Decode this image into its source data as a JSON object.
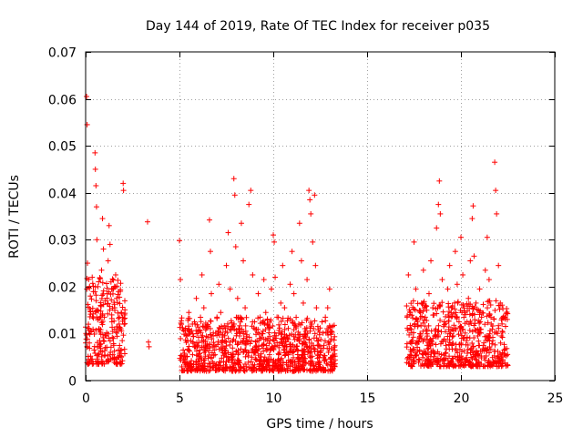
{
  "chart_data": {
    "type": "scatter",
    "title": "Day 144 of 2019, Rate Of TEC Index for receiver p035",
    "xlabel": "GPS time / hours",
    "ylabel": "ROTI / TECUs",
    "xlim": [
      0,
      25
    ],
    "ylim": [
      0,
      0.07
    ],
    "xticks": [
      0,
      5,
      10,
      15,
      20,
      25
    ],
    "xtick_labels": [
      "0",
      "5",
      "10",
      "15",
      "20",
      "25"
    ],
    "yticks": [
      0,
      0.01,
      0.02,
      0.03,
      0.04,
      0.05,
      0.06,
      0.07
    ],
    "ytick_labels": [
      "0",
      "0.01",
      "0.02",
      "0.03",
      "0.04",
      "0.05",
      "0.06",
      "0.07"
    ],
    "grid": true,
    "marker": "+",
    "color": "#ff0000",
    "series": [
      {
        "name": "p035",
        "points": [
          [
            0.05,
            0.0605
          ],
          [
            0.08,
            0.0545
          ],
          [
            0.1,
            0.025
          ],
          [
            0.15,
            0.012
          ],
          [
            0.2,
            0.008
          ],
          [
            0.25,
            0.018
          ],
          [
            0.3,
            0.0105
          ],
          [
            0.35,
            0.022
          ],
          [
            0.4,
            0.0142
          ],
          [
            0.45,
            0.0065
          ],
          [
            0.5,
            0.0485
          ],
          [
            0.52,
            0.045
          ],
          [
            0.55,
            0.0415
          ],
          [
            0.58,
            0.037
          ],
          [
            0.6,
            0.03
          ],
          [
            0.65,
            0.02
          ],
          [
            0.7,
            0.011
          ],
          [
            0.75,
            0.0085
          ],
          [
            0.8,
            0.016
          ],
          [
            0.85,
            0.0235
          ],
          [
            0.9,
            0.0345
          ],
          [
            0.95,
            0.028
          ],
          [
            1.0,
            0.0135
          ],
          [
            1.05,
            0.007
          ],
          [
            1.1,
            0.0095
          ],
          [
            1.15,
            0.0185
          ],
          [
            1.2,
            0.0255
          ],
          [
            1.25,
            0.033
          ],
          [
            1.3,
            0.029
          ],
          [
            1.35,
            0.021
          ],
          [
            1.4,
            0.0125
          ],
          [
            1.45,
            0.0055
          ],
          [
            1.5,
            0.0075
          ],
          [
            1.55,
            0.0155
          ],
          [
            1.6,
            0.0225
          ],
          [
            1.65,
            0.0175
          ],
          [
            1.7,
            0.0105
          ],
          [
            1.75,
            0.0065
          ],
          [
            1.8,
            0.0135
          ],
          [
            1.85,
            0.019
          ],
          [
            1.9,
            0.0145
          ],
          [
            1.95,
            0.0085
          ],
          [
            2.0,
            0.042
          ],
          [
            2.02,
            0.0405
          ],
          [
            2.05,
            0.012
          ],
          [
            0.12,
            0.0035
          ],
          [
            0.3,
            0.0045
          ],
          [
            0.7,
            0.0035
          ],
          [
            1.2,
            0.004
          ],
          [
            1.9,
            0.005
          ],
          [
            3.3,
            0.0338
          ],
          [
            3.35,
            0.0082
          ],
          [
            3.38,
            0.0072
          ],
          [
            5.0,
            0.0298
          ],
          [
            5.05,
            0.0215
          ],
          [
            5.1,
            0.012
          ],
          [
            5.2,
            0.0065
          ],
          [
            5.3,
            0.0045
          ],
          [
            5.4,
            0.0095
          ],
          [
            5.5,
            0.0145
          ],
          [
            5.6,
            0.0085
          ],
          [
            5.7,
            0.0055
          ],
          [
            5.8,
            0.0125
          ],
          [
            5.9,
            0.0175
          ],
          [
            6.0,
            0.0105
          ],
          [
            6.1,
            0.0065
          ],
          [
            6.2,
            0.0225
          ],
          [
            6.3,
            0.0155
          ],
          [
            6.4,
            0.0075
          ],
          [
            6.5,
            0.0115
          ],
          [
            6.6,
            0.0342
          ],
          [
            6.65,
            0.0275
          ],
          [
            6.7,
            0.0185
          ],
          [
            6.8,
            0.0095
          ],
          [
            6.9,
            0.0055
          ],
          [
            7.0,
            0.0135
          ],
          [
            7.1,
            0.0205
          ],
          [
            7.2,
            0.0145
          ],
          [
            7.3,
            0.0085
          ],
          [
            7.4,
            0.0065
          ],
          [
            7.5,
            0.0245
          ],
          [
            7.6,
            0.0315
          ],
          [
            7.7,
            0.0195
          ],
          [
            7.8,
            0.0115
          ],
          [
            7.9,
            0.043
          ],
          [
            7.95,
            0.0395
          ],
          [
            8.0,
            0.0285
          ],
          [
            8.1,
            0.0175
          ],
          [
            8.2,
            0.0095
          ],
          [
            8.3,
            0.0335
          ],
          [
            8.4,
            0.0255
          ],
          [
            8.5,
            0.0155
          ],
          [
            8.6,
            0.0085
          ],
          [
            8.7,
            0.0375
          ],
          [
            8.8,
            0.0405
          ],
          [
            8.9,
            0.0225
          ],
          [
            9.0,
            0.0125
          ],
          [
            9.1,
            0.0065
          ],
          [
            9.2,
            0.0185
          ],
          [
            9.3,
            0.0135
          ],
          [
            9.4,
            0.0075
          ],
          [
            9.5,
            0.0215
          ],
          [
            9.6,
            0.0145
          ],
          [
            9.7,
            0.0085
          ],
          [
            9.8,
            0.0055
          ],
          [
            9.9,
            0.0195
          ],
          [
            10.0,
            0.031
          ],
          [
            10.05,
            0.0295
          ],
          [
            10.1,
            0.022
          ],
          [
            10.2,
            0.0135
          ],
          [
            10.3,
            0.0075
          ],
          [
            10.4,
            0.0165
          ],
          [
            10.5,
            0.0245
          ],
          [
            10.6,
            0.0155
          ],
          [
            10.7,
            0.0095
          ],
          [
            10.8,
            0.0055
          ],
          [
            10.9,
            0.0205
          ],
          [
            11.0,
            0.0275
          ],
          [
            11.1,
            0.0185
          ],
          [
            11.2,
            0.0115
          ],
          [
            11.3,
            0.0065
          ],
          [
            11.4,
            0.0335
          ],
          [
            11.5,
            0.0255
          ],
          [
            11.6,
            0.0165
          ],
          [
            11.7,
            0.0095
          ],
          [
            11.8,
            0.0215
          ],
          [
            11.9,
            0.0405
          ],
          [
            11.95,
            0.0385
          ],
          [
            12.0,
            0.0355
          ],
          [
            12.1,
            0.0295
          ],
          [
            12.2,
            0.0395
          ],
          [
            12.25,
            0.0245
          ],
          [
            12.3,
            0.0155
          ],
          [
            12.4,
            0.0085
          ],
          [
            12.5,
            0.0055
          ],
          [
            12.6,
            0.0125
          ],
          [
            12.7,
            0.0075
          ],
          [
            12.8,
            0.0045
          ],
          [
            12.9,
            0.0155
          ],
          [
            13.0,
            0.0195
          ],
          [
            13.1,
            0.0105
          ],
          [
            13.2,
            0.0065
          ],
          [
            13.25,
            0.0035
          ],
          [
            5.5,
            0.0035
          ],
          [
            6.5,
            0.003
          ],
          [
            7.5,
            0.004
          ],
          [
            8.5,
            0.0035
          ],
          [
            9.5,
            0.003
          ],
          [
            10.5,
            0.0025
          ],
          [
            11.5,
            0.003
          ],
          [
            12.5,
            0.0028
          ],
          [
            17.2,
            0.0225
          ],
          [
            17.3,
            0.0145
          ],
          [
            17.4,
            0.0085
          ],
          [
            17.5,
            0.0295
          ],
          [
            17.6,
            0.0195
          ],
          [
            17.7,
            0.0115
          ],
          [
            17.8,
            0.0065
          ],
          [
            17.9,
            0.0165
          ],
          [
            18.0,
            0.0235
          ],
          [
            18.1,
            0.0135
          ],
          [
            18.2,
            0.0075
          ],
          [
            18.3,
            0.0185
          ],
          [
            18.4,
            0.0255
          ],
          [
            18.5,
            0.0155
          ],
          [
            18.6,
            0.0095
          ],
          [
            18.7,
            0.0325
          ],
          [
            18.8,
            0.0375
          ],
          [
            18.85,
            0.0425
          ],
          [
            18.9,
            0.0355
          ],
          [
            19.0,
            0.0215
          ],
          [
            19.1,
            0.0125
          ],
          [
            19.2,
            0.0075
          ],
          [
            19.3,
            0.0195
          ],
          [
            19.4,
            0.0245
          ],
          [
            19.5,
            0.0155
          ],
          [
            19.6,
            0.0095
          ],
          [
            19.7,
            0.0275
          ],
          [
            19.8,
            0.0205
          ],
          [
            19.9,
            0.0125
          ],
          [
            20.0,
            0.0305
          ],
          [
            20.1,
            0.0225
          ],
          [
            20.2,
            0.0145
          ],
          [
            20.3,
            0.0085
          ],
          [
            20.4,
            0.0175
          ],
          [
            20.5,
            0.0255
          ],
          [
            20.6,
            0.0345
          ],
          [
            20.65,
            0.0372
          ],
          [
            20.7,
            0.0265
          ],
          [
            20.8,
            0.0165
          ],
          [
            20.9,
            0.0095
          ],
          [
            21.0,
            0.0195
          ],
          [
            21.1,
            0.0135
          ],
          [
            21.2,
            0.0075
          ],
          [
            21.3,
            0.0235
          ],
          [
            21.4,
            0.0305
          ],
          [
            21.5,
            0.0215
          ],
          [
            21.6,
            0.0135
          ],
          [
            21.7,
            0.0085
          ],
          [
            21.8,
            0.0465
          ],
          [
            21.85,
            0.0405
          ],
          [
            21.9,
            0.0355
          ],
          [
            22.0,
            0.0245
          ],
          [
            22.1,
            0.0165
          ],
          [
            22.2,
            0.0105
          ],
          [
            22.3,
            0.0065
          ],
          [
            22.35,
            0.0135
          ],
          [
            17.5,
            0.004
          ],
          [
            18.5,
            0.0035
          ],
          [
            19.5,
            0.004
          ],
          [
            20.5,
            0.0035
          ],
          [
            21.5,
            0.004
          ]
        ]
      }
    ],
    "density_bands": [
      {
        "x_start": 0.0,
        "x_end": 2.1,
        "y_low": 0.0035,
        "y_high": 0.022
      },
      {
        "x_start": 5.0,
        "x_end": 13.3,
        "y_low": 0.002,
        "y_high": 0.0135
      },
      {
        "x_start": 17.1,
        "x_end": 22.5,
        "y_low": 0.003,
        "y_high": 0.017
      }
    ]
  }
}
